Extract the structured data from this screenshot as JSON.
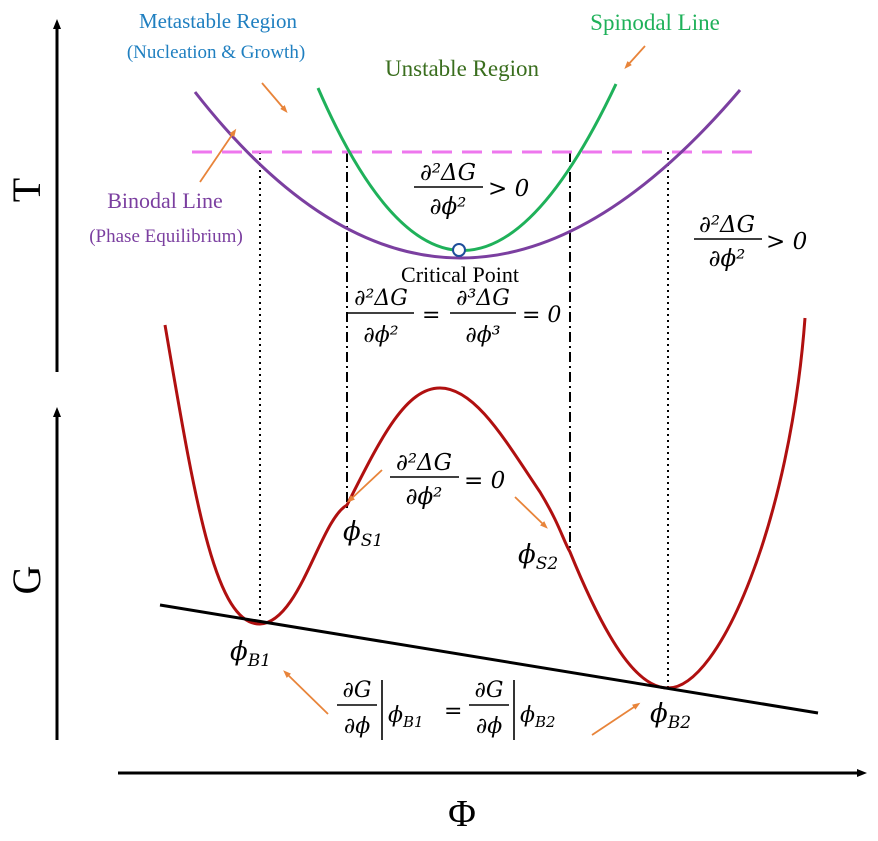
{
  "axes": {
    "t_label": "T",
    "g_label": "G",
    "phi_label": "Φ"
  },
  "regions": {
    "metastable_title": "Metastable Region",
    "metastable_sub": "(Nucleation & Growth)",
    "unstable": "Unstable Region",
    "spinodal_line": "Spinodal Line",
    "binodal_line": "Binodal Line",
    "binodal_sub": "(Phase Equilibrium)",
    "critical_point": "Critical Point"
  },
  "equations": {
    "d2": "∂²ΔG",
    "d3": "∂³ΔG",
    "dphi2": "∂ϕ²",
    "dphi3": "∂ϕ³",
    "gt0": "> 0",
    "eq0": "= 0",
    "eq": "=",
    "dG": "∂G",
    "dphi": "∂ϕ"
  },
  "points": {
    "phi_s1": "ϕ",
    "phi_s1_sub": "S1",
    "phi_s2": "ϕ",
    "phi_s2_sub": "S2",
    "phi_b1": "ϕ",
    "phi_b1_sub": "B1",
    "phi_b2": "ϕ",
    "phi_b2_sub": "B2"
  },
  "colors": {
    "metastable": "#1f7fc0",
    "unstable": "#3a6e1e",
    "spinodal": "#1fb15a",
    "binodal": "#7b3fa0",
    "tie_line": "#ee77ee",
    "g_curve": "#b01010",
    "arrow": "#e8843a"
  }
}
